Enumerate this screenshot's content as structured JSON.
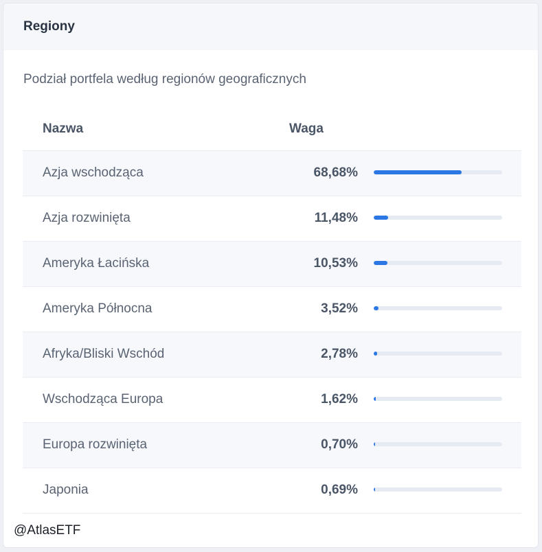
{
  "card": {
    "title": "Regiony",
    "subtitle": "Podział portfela według regionów geograficznych"
  },
  "table": {
    "columns": {
      "name": "Nazwa",
      "weight": "Waga"
    },
    "rows": [
      {
        "name": "Azja wschodząca",
        "weight": "68,68%",
        "fraction": 0.6868
      },
      {
        "name": "Azja rozwinięta",
        "weight": "11,48%",
        "fraction": 0.1148
      },
      {
        "name": "Ameryka Łacińska",
        "weight": "10,53%",
        "fraction": 0.1053
      },
      {
        "name": "Ameryka Północna",
        "weight": "3,52%",
        "fraction": 0.0352
      },
      {
        "name": "Afryka/Bliski Wschód",
        "weight": "2,78%",
        "fraction": 0.0278
      },
      {
        "name": "Wschodząca Europa",
        "weight": "1,62%",
        "fraction": 0.0162
      },
      {
        "name": "Europa rozwinięta",
        "weight": "0,70%",
        "fraction": 0.007
      },
      {
        "name": "Japonia",
        "weight": "0,69%",
        "fraction": 0.0069
      }
    ]
  },
  "watermark": "@AtlasETF",
  "colors": {
    "bar_fill": "#2b78e4",
    "bar_track": "#e6ebf3",
    "row_alt": "#f6f8fc"
  }
}
